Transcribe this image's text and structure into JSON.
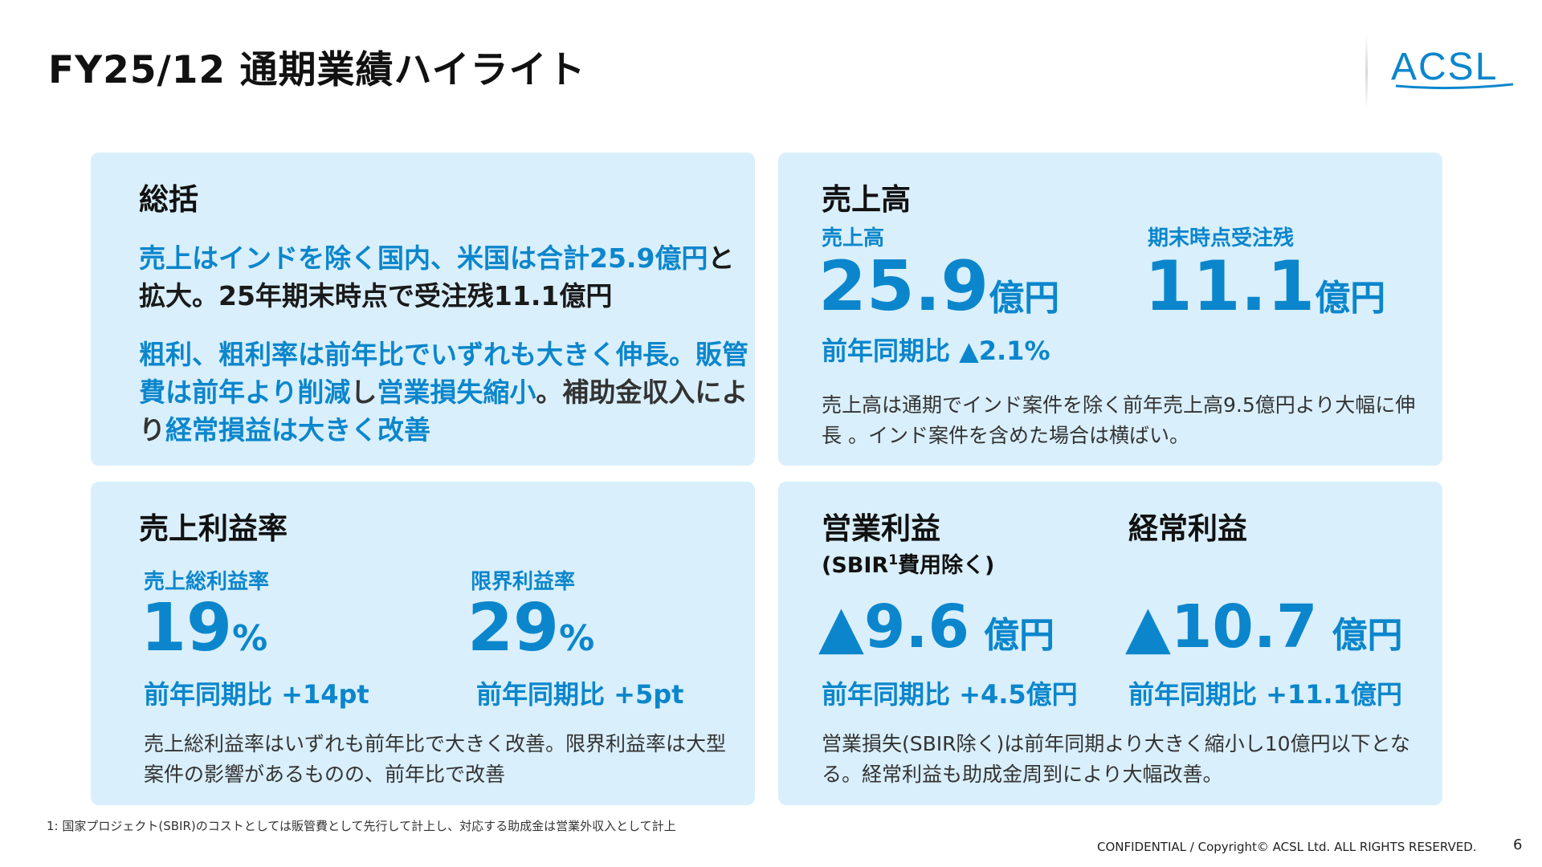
{
  "title": "FY25/12 通期業績ハイライト",
  "logo": {
    "text": "ACSL",
    "color": "#0b86cc"
  },
  "colors": {
    "accent": "#0b86cc",
    "card_bg": "#d9effb"
  },
  "summary": {
    "heading": "総括",
    "p1_blue": "売上はインドを除く国内、米国は合計25.9億円",
    "p1_dark": "と拡大。25年期末時点で受注残11.1億円",
    "p2_blue1": "粗利、粗利率は前年比でいずれも大きく伸長。販管費は前年より削減",
    "p2_dark1": "し",
    "p2_blue2": "営業損失縮小",
    "p2_dark2": "。補助金収入により",
    "p2_blue3": "経常損益は大きく改善"
  },
  "sales": {
    "heading": "売上高",
    "revenue_label": "売上高",
    "revenue_value": "25.9",
    "revenue_unit": "億円",
    "revenue_yoy": "前年同期比 ▲2.1%",
    "backlog_label": "期末時点受注残",
    "backlog_value": "11.1",
    "backlog_unit": "億円",
    "description": "売上高は通期でインド案件を除く前年売上高9.5億円より大幅に伸長 。インド案件を含めた場合は横ばい。"
  },
  "margin": {
    "heading": "売上利益率",
    "gross_label": "売上総利益率",
    "gross_value": "19",
    "gross_unit": "%",
    "gross_yoy": "前年同期比 +14pt",
    "marginal_label": "限界利益率",
    "marginal_value": "29",
    "marginal_unit": "%",
    "marginal_yoy": "前年同期比 +5pt",
    "description": "売上総利益率はいずれも前年比で大きく改善。限界利益率は大型案件の影響があるものの、前年比で改善"
  },
  "profit": {
    "operating_heading": "営業利益",
    "operating_sub_prefix": "(SBIR",
    "operating_sub_sup": "1",
    "operating_sub_suffix": "費用除く)",
    "operating_value": "▲9.6",
    "operating_unit": "億円",
    "operating_yoy": "前年同期比 +4.5億円",
    "ordinary_heading": "経常利益",
    "ordinary_value": "▲10.7",
    "ordinary_unit": "億円",
    "ordinary_yoy": "前年同期比 +11.1億円",
    "description": "営業損失(SBIR除く)は前年同期より大きく縮小し10億円以下となる。経常利益も助成金周到により大幅改善。"
  },
  "footer": {
    "footnote": "1: 国家プロジェクト(SBIR)のコストとしては販管費として先行して計上し、対応する助成金は営業外収入として計上",
    "copyright": "CONFIDENTIAL / Copyright© ACSL Ltd. ALL RIGHTS RESERVED.",
    "page_number": "6"
  }
}
